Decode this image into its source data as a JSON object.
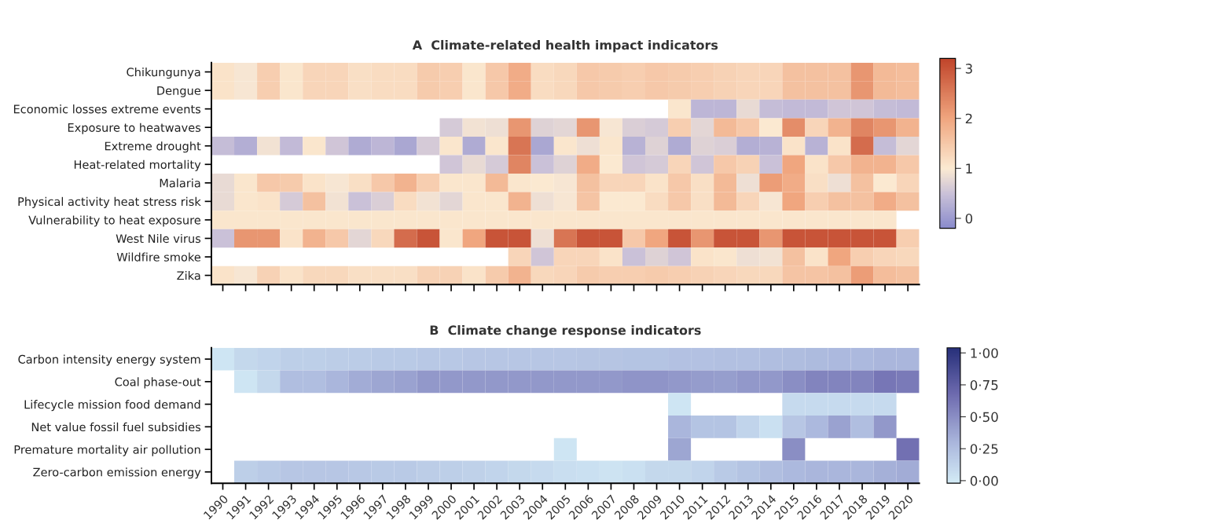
{
  "chart_data": [
    {
      "type": "heatmap",
      "title": "A  Climate-related health impact indicators",
      "tick_labels": "y",
      "categories": [
        "1990",
        "1991",
        "1992",
        "1993",
        "1994",
        "1995",
        "1996",
        "1997",
        "1998",
        "1999",
        "2000",
        "2001",
        "2002",
        "2003",
        "2004",
        "2005",
        "2006",
        "2007",
        "2008",
        "2009",
        "2010",
        "2011",
        "2012",
        "2013",
        "2014",
        "2015",
        "2016",
        "2017",
        "2018",
        "2019",
        "2020"
      ],
      "y_categories": [
        "Chikungunya",
        "Dengue",
        "Economic losses extreme events",
        "Exposure to heatwaves",
        "Extreme drought",
        "Heat-related mortality",
        "Malaria",
        "Physical activity heat stress risk",
        "Vulnerability to heat exposure",
        "West Nile virus",
        "Wildfire smoke",
        "Zika"
      ],
      "cells": [
        [
          1.1,
          0.95,
          1.4,
          1.05,
          1.3,
          1.3,
          1.15,
          1.2,
          1.2,
          1.45,
          1.4,
          1.05,
          1.5,
          1.9,
          1.2,
          1.25,
          1.5,
          1.45,
          1.4,
          1.5,
          1.45,
          1.4,
          1.35,
          1.3,
          1.3,
          1.6,
          1.6,
          1.6,
          2.2,
          1.7,
          1.65
        ],
        [
          1.1,
          0.95,
          1.4,
          1.05,
          1.3,
          1.3,
          1.15,
          1.2,
          1.2,
          1.45,
          1.4,
          1.05,
          1.5,
          1.9,
          1.2,
          1.25,
          1.5,
          1.45,
          1.4,
          1.5,
          1.45,
          1.4,
          1.35,
          1.3,
          1.3,
          1.6,
          1.6,
          1.6,
          2.2,
          1.7,
          1.65
        ],
        [
          null,
          null,
          null,
          null,
          null,
          null,
          null,
          null,
          null,
          null,
          null,
          null,
          null,
          null,
          null,
          null,
          null,
          null,
          null,
          null,
          1.05,
          0.35,
          0.35,
          0.8,
          0.45,
          0.4,
          0.4,
          0.55,
          0.55,
          0.45,
          0.4
        ],
        [
          null,
          null,
          null,
          null,
          null,
          null,
          null,
          null,
          null,
          null,
          0.6,
          0.9,
          0.85,
          2.2,
          0.7,
          0.75,
          2.2,
          0.95,
          0.65,
          0.6,
          1.4,
          0.75,
          1.7,
          1.5,
          1.0,
          2.3,
          1.3,
          1.8,
          2.4,
          2.2,
          1.8
        ],
        [
          0.45,
          0.25,
          0.9,
          0.4,
          1.05,
          0.55,
          0.2,
          0.35,
          0.15,
          0.6,
          1.05,
          0.2,
          1.05,
          2.6,
          0.15,
          1.05,
          0.85,
          1.05,
          0.3,
          0.7,
          0.2,
          0.7,
          0.65,
          0.25,
          0.3,
          1.1,
          0.3,
          1.1,
          2.7,
          0.45,
          0.75
        ],
        [
          null,
          null,
          null,
          null,
          null,
          null,
          null,
          null,
          null,
          null,
          0.55,
          0.8,
          0.6,
          2.4,
          0.5,
          0.7,
          1.9,
          1.0,
          0.55,
          0.6,
          1.3,
          0.55,
          1.5,
          1.35,
          0.5,
          2.0,
          1.1,
          1.5,
          1.8,
          1.8,
          1.5
        ],
        [
          0.8,
          1.05,
          1.5,
          1.45,
          1.1,
          0.95,
          1.15,
          1.5,
          1.8,
          1.4,
          1.05,
          1.05,
          1.7,
          1.05,
          1.0,
          0.95,
          1.6,
          1.3,
          1.3,
          1.1,
          1.5,
          1.15,
          1.7,
          0.85,
          2.1,
          1.9,
          1.15,
          0.85,
          1.6,
          1.0,
          1.3
        ],
        [
          0.8,
          1.05,
          1.1,
          0.6,
          1.6,
          0.9,
          0.5,
          0.65,
          1.2,
          0.9,
          0.75,
          1.05,
          1.05,
          1.8,
          0.85,
          0.95,
          1.55,
          1.0,
          1.0,
          1.2,
          1.5,
          1.15,
          1.7,
          1.3,
          0.95,
          2.0,
          1.4,
          1.6,
          1.6,
          1.9,
          1.6
        ],
        [
          1.05,
          1.05,
          1.05,
          1.05,
          1.05,
          1.05,
          1.05,
          1.05,
          1.05,
          1.05,
          1.05,
          1.05,
          1.05,
          1.05,
          1.05,
          1.05,
          1.05,
          1.05,
          1.05,
          1.05,
          1.05,
          1.05,
          1.05,
          1.05,
          1.05,
          1.05,
          1.05,
          1.05,
          1.05,
          1.05,
          null
        ],
        [
          0.5,
          2.2,
          2.2,
          1.1,
          1.8,
          1.5,
          0.75,
          1.25,
          2.7,
          3.0,
          1.05,
          2.0,
          3.0,
          3.0,
          0.85,
          2.6,
          3.0,
          3.0,
          1.5,
          2.0,
          3.0,
          2.2,
          3.0,
          3.0,
          2.2,
          3.0,
          3.0,
          3.0,
          3.0,
          3.0,
          1.4
        ],
        [
          null,
          null,
          null,
          null,
          null,
          null,
          null,
          null,
          null,
          null,
          null,
          null,
          null,
          1.3,
          0.55,
          1.3,
          1.3,
          1.1,
          0.5,
          0.7,
          0.55,
          1.1,
          1.05,
          0.85,
          0.9,
          1.6,
          1.1,
          2.0,
          1.4,
          1.3,
          1.25
        ],
        [
          1.1,
          0.95,
          1.35,
          1.1,
          1.25,
          1.25,
          1.15,
          1.15,
          1.15,
          1.35,
          1.35,
          1.1,
          1.45,
          1.8,
          1.25,
          1.3,
          1.45,
          1.4,
          1.4,
          1.45,
          1.4,
          1.35,
          1.3,
          1.25,
          1.25,
          1.55,
          1.55,
          1.6,
          2.1,
          1.65,
          1.6
        ]
      ],
      "clim": [
        -0.2,
        3.2
      ],
      "cticks": [
        0,
        1,
        2,
        3
      ]
    },
    {
      "type": "heatmap",
      "title": "B  Climate change response indicators",
      "tick_labels": "xy",
      "categories": [
        "1990",
        "1991",
        "1992",
        "1993",
        "1994",
        "1995",
        "1996",
        "1997",
        "1998",
        "1999",
        "2000",
        "2001",
        "2002",
        "2003",
        "2004",
        "2005",
        "2006",
        "2007",
        "2008",
        "2009",
        "2010",
        "2011",
        "2012",
        "2013",
        "2014",
        "2015",
        "2016",
        "2017",
        "2018",
        "2019",
        "2020"
      ],
      "y_categories": [
        "Carbon intensity energy system",
        "Coal phase-out",
        "Lifecycle mission food demand",
        "Net value fossil fuel subsidies",
        "Premature mortality air pollution",
        "Zero-carbon emission energy"
      ],
      "cells": [
        [
          0.02,
          0.1,
          0.12,
          0.15,
          0.15,
          0.16,
          0.17,
          0.18,
          0.18,
          0.19,
          0.19,
          0.2,
          0.2,
          0.2,
          0.2,
          0.2,
          0.21,
          0.21,
          0.22,
          0.22,
          0.23,
          0.23,
          0.24,
          0.24,
          0.25,
          0.26,
          0.27,
          0.28,
          0.28,
          0.3,
          0.3
        ],
        [
          null,
          0.02,
          0.1,
          0.25,
          0.25,
          0.3,
          0.35,
          0.38,
          0.4,
          0.45,
          0.45,
          0.45,
          0.45,
          0.45,
          0.45,
          0.45,
          0.45,
          0.45,
          0.47,
          0.47,
          0.45,
          0.43,
          0.42,
          0.45,
          0.45,
          0.5,
          0.55,
          0.55,
          0.55,
          0.62,
          0.6
        ],
        [
          null,
          null,
          null,
          null,
          null,
          null,
          null,
          null,
          null,
          null,
          null,
          null,
          null,
          null,
          null,
          null,
          null,
          null,
          null,
          null,
          0.02,
          null,
          null,
          null,
          null,
          0.08,
          0.08,
          0.08,
          0.08,
          0.08,
          null
        ],
        [
          null,
          null,
          null,
          null,
          null,
          null,
          null,
          null,
          null,
          null,
          null,
          null,
          null,
          null,
          null,
          null,
          null,
          null,
          null,
          null,
          0.3,
          0.22,
          0.22,
          0.12,
          0.05,
          0.2,
          0.28,
          0.4,
          0.25,
          0.45,
          null
        ],
        [
          null,
          null,
          null,
          null,
          null,
          null,
          null,
          null,
          null,
          null,
          null,
          null,
          null,
          null,
          null,
          0.02,
          null,
          null,
          null,
          null,
          0.38,
          null,
          null,
          null,
          null,
          0.5,
          null,
          null,
          null,
          null,
          0.65
        ],
        [
          null,
          0.15,
          0.18,
          0.2,
          0.2,
          0.2,
          0.19,
          0.18,
          0.18,
          0.16,
          0.15,
          0.14,
          0.12,
          0.1,
          0.08,
          0.06,
          0.05,
          0.03,
          0.05,
          0.1,
          0.1,
          0.12,
          0.18,
          0.22,
          0.25,
          0.28,
          0.3,
          0.3,
          0.3,
          0.33,
          0.35
        ]
      ],
      "clim": [
        -0.02,
        1.04
      ],
      "cticks": [
        {
          "value": 0,
          "label": "0·00"
        },
        {
          "value": 0.25,
          "label": "0·25"
        },
        {
          "value": 0.5,
          "label": "0·50"
        },
        {
          "value": 0.75,
          "label": "0·75"
        },
        {
          "value": 1,
          "label": "1·00"
        }
      ]
    }
  ]
}
